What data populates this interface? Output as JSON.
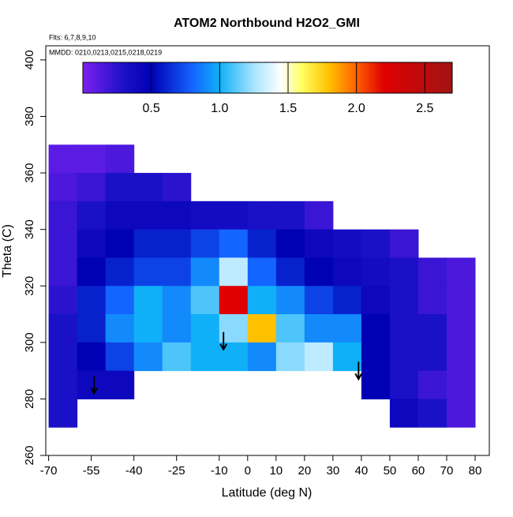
{
  "chart_data": {
    "type": "heatmap",
    "title": "ATOM2 Northbound H2O2_GMI",
    "subtitle": "Flts: 6,7,8,9,10",
    "annotation": "MMDD: 0210,0213,0215,0218,0219",
    "x_label": "Latitude (deg N)",
    "y_label": "Theta (C)",
    "xlim": [
      -71,
      85
    ],
    "ylim": [
      260,
      405
    ],
    "xticks": [
      -70,
      -55,
      -40,
      -25,
      -10,
      0,
      10,
      20,
      30,
      40,
      50,
      60,
      70,
      80
    ],
    "yticks": [
      260,
      280,
      300,
      320,
      340,
      360,
      380,
      400
    ],
    "x_edges": [
      -70,
      -60,
      -50,
      -40,
      -30,
      -20,
      -10,
      0,
      10,
      20,
      30,
      40,
      50,
      60,
      70,
      80
    ],
    "y_edges": [
      370,
      360,
      350,
      340,
      330,
      320,
      310,
      300,
      290,
      280,
      270
    ],
    "z": [
      [
        0.1,
        0.1,
        0.15,
        null,
        null,
        null,
        null,
        null,
        null,
        null,
        null,
        null,
        null,
        null,
        null
      ],
      [
        0.15,
        0.2,
        0.3,
        0.3,
        0.25,
        null,
        null,
        null,
        null,
        null,
        null,
        null,
        null,
        null,
        null
      ],
      [
        0.2,
        0.3,
        0.4,
        0.4,
        0.4,
        0.35,
        0.35,
        0.3,
        0.3,
        0.2,
        null,
        null,
        null,
        null,
        null
      ],
      [
        0.2,
        0.4,
        0.5,
        0.6,
        0.6,
        0.7,
        0.8,
        0.6,
        0.5,
        0.4,
        0.35,
        0.3,
        0.2,
        null,
        null
      ],
      [
        0.2,
        0.5,
        0.6,
        0.7,
        0.7,
        0.9,
        1.3,
        0.8,
        0.6,
        0.5,
        0.4,
        0.35,
        0.3,
        0.2,
        0.15
      ],
      [
        0.25,
        0.6,
        0.8,
        1.0,
        0.9,
        1.1,
        2.2,
        1.0,
        0.9,
        0.7,
        0.6,
        0.4,
        0.3,
        0.2,
        0.15
      ],
      [
        0.3,
        0.6,
        0.9,
        1.0,
        0.9,
        1.0,
        1.2,
        1.8,
        1.1,
        0.9,
        0.9,
        0.5,
        0.3,
        0.3,
        0.15
      ],
      [
        0.3,
        0.5,
        0.7,
        0.9,
        1.1,
        1.0,
        1.0,
        0.9,
        1.2,
        1.3,
        1.0,
        0.5,
        0.3,
        0.3,
        0.15
      ],
      [
        0.3,
        0.4,
        0.4,
        null,
        null,
        null,
        null,
        null,
        null,
        null,
        null,
        0.5,
        0.3,
        0.2,
        0.15
      ],
      [
        0.3,
        null,
        null,
        null,
        null,
        null,
        null,
        null,
        null,
        null,
        null,
        null,
        0.4,
        0.3,
        0.15
      ]
    ],
    "colorbar": {
      "lim": [
        0,
        2.7
      ],
      "ticks": [
        0.5,
        {
          "value": 1,
          "label": "1.0"
        },
        1.5,
        {
          "value": 2,
          "label": "2.0"
        },
        2.5
      ],
      "stops": [
        {
          "value": 0,
          "color": "#7c20f0"
        },
        {
          "value": 0.3,
          "color": "#1a10c8"
        },
        {
          "value": 0.5,
          "color": "#0000b4"
        },
        {
          "value": 0.8,
          "color": "#1464ff"
        },
        {
          "value": 1.0,
          "color": "#10b0f8"
        },
        {
          "value": 1.25,
          "color": "#a8e4ff"
        },
        {
          "value": 1.45,
          "color": "#ffffff"
        },
        {
          "value": 1.6,
          "color": "#ffff60"
        },
        {
          "value": 1.8,
          "color": "#ffc000"
        },
        {
          "value": 2.0,
          "color": "#ff6000"
        },
        {
          "value": 2.2,
          "color": "#e00000"
        },
        {
          "value": 2.7,
          "color": "#a01414"
        }
      ]
    },
    "arrows": {
      "x": [
        -54,
        -8.5,
        39
      ],
      "y": [
        282,
        297.5,
        287
      ]
    }
  }
}
